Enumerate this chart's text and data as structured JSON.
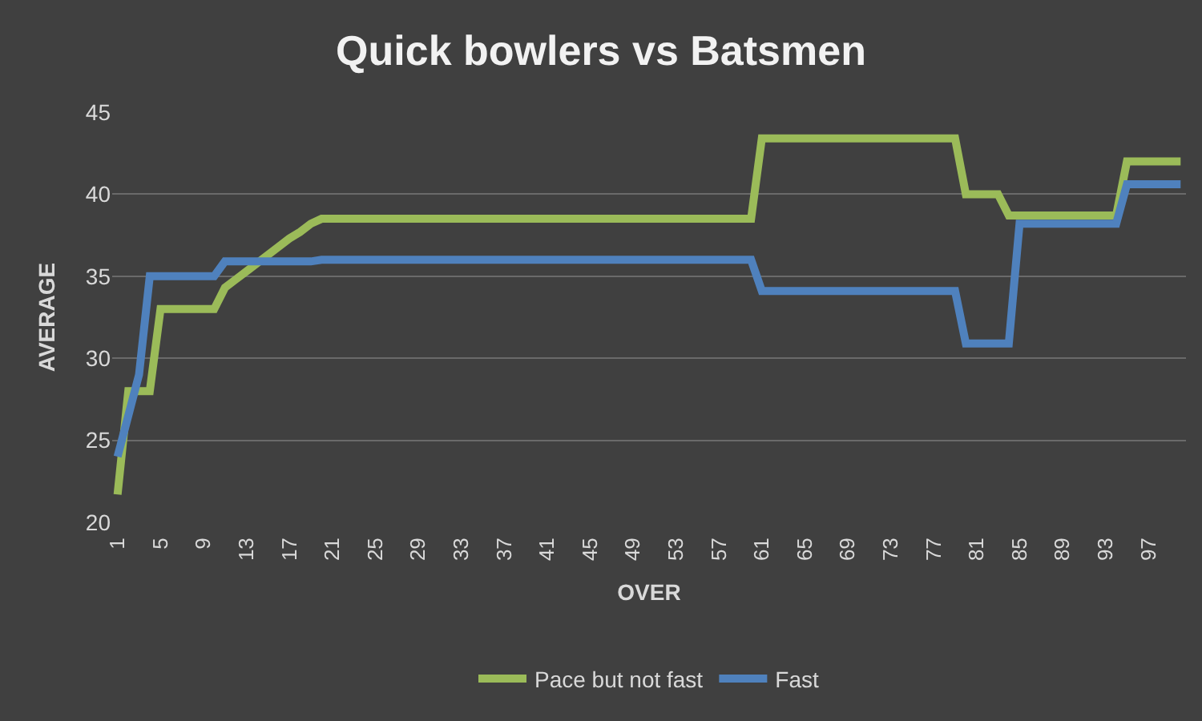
{
  "chart_data": {
    "type": "line",
    "title": "Quick bowlers vs Batsmen",
    "xlabel": "OVER",
    "ylabel": "AVERAGE",
    "categories": [
      "1",
      null,
      null,
      null,
      "5",
      null,
      null,
      null,
      "9",
      null,
      null,
      null,
      "13",
      null,
      null,
      null,
      "17",
      null,
      null,
      null,
      "21",
      null,
      null,
      null,
      "25",
      null,
      null,
      null,
      "29",
      null,
      null,
      null,
      "33",
      null,
      null,
      null,
      "37",
      null,
      null,
      null,
      "41",
      null,
      null,
      null,
      "45",
      null,
      null,
      null,
      "49",
      null,
      null,
      null,
      "53",
      null,
      null,
      null,
      "57",
      null,
      null,
      null,
      "61",
      null,
      null,
      null,
      "65",
      null,
      null,
      null,
      "69",
      null,
      null,
      null,
      "73",
      null,
      null,
      null,
      "77",
      null,
      null,
      null,
      "81",
      null,
      null,
      null,
      "85",
      null,
      null,
      null,
      "89",
      null,
      null,
      null,
      "93",
      null,
      null,
      null,
      "97",
      null,
      null,
      null
    ],
    "series": [
      {
        "name": "Pace but not fast",
        "color": "#9bbb59",
        "values": [
          21.7,
          28,
          28,
          28,
          33,
          33,
          33,
          33,
          33,
          33,
          34.3,
          34.8,
          35.3,
          35.8,
          36.3,
          36.8,
          37.3,
          37.7,
          38.2,
          38.5,
          38.5,
          38.5,
          38.5,
          38.5,
          38.5,
          38.5,
          38.5,
          38.5,
          38.5,
          38.5,
          38.5,
          38.5,
          38.5,
          38.5,
          38.5,
          38.5,
          38.5,
          38.5,
          38.5,
          38.5,
          38.5,
          38.5,
          38.5,
          38.5,
          38.5,
          38.5,
          38.5,
          38.5,
          38.5,
          38.5,
          38.5,
          38.5,
          38.5,
          38.5,
          38.5,
          38.5,
          38.5,
          38.5,
          38.5,
          38.5,
          43.4,
          43.4,
          43.4,
          43.4,
          43.4,
          43.4,
          43.4,
          43.4,
          43.4,
          43.4,
          43.4,
          43.4,
          43.4,
          43.4,
          43.4,
          43.4,
          43.4,
          43.4,
          43.4,
          40,
          40,
          40,
          40,
          38.7,
          38.7,
          38.7,
          38.7,
          38.7,
          38.7,
          38.7,
          38.7,
          38.7,
          38.7,
          38.7,
          42,
          42,
          42,
          42,
          42,
          42
        ]
      },
      {
        "name": "Fast",
        "color": "#4f81bd",
        "values": [
          24,
          26.5,
          29,
          35,
          35,
          35,
          35,
          35,
          35,
          35,
          35.9,
          35.9,
          35.9,
          35.9,
          35.9,
          35.9,
          35.9,
          35.9,
          35.9,
          36,
          36,
          36,
          36,
          36,
          36,
          36,
          36,
          36,
          36,
          36,
          36,
          36,
          36,
          36,
          36,
          36,
          36,
          36,
          36,
          36,
          36,
          36,
          36,
          36,
          36,
          36,
          36,
          36,
          36,
          36,
          36,
          36,
          36,
          36,
          36,
          36,
          36,
          36,
          36,
          36,
          34.1,
          34.1,
          34.1,
          34.1,
          34.1,
          34.1,
          34.1,
          34.1,
          34.1,
          34.1,
          34.1,
          34.1,
          34.1,
          34.1,
          34.1,
          34.1,
          34.1,
          34.1,
          34.1,
          30.9,
          30.9,
          30.9,
          30.9,
          30.9,
          38.2,
          38.2,
          38.2,
          38.2,
          38.2,
          38.2,
          38.2,
          38.2,
          38.2,
          38.2,
          40.6,
          40.6,
          40.6,
          40.6,
          40.6,
          40.6
        ]
      }
    ],
    "ylim": [
      20,
      45
    ],
    "yticks": [
      20,
      25,
      30,
      35,
      40,
      45
    ],
    "grid": "y",
    "legend": "bottom",
    "marker": "none",
    "line_style": "solid"
  }
}
